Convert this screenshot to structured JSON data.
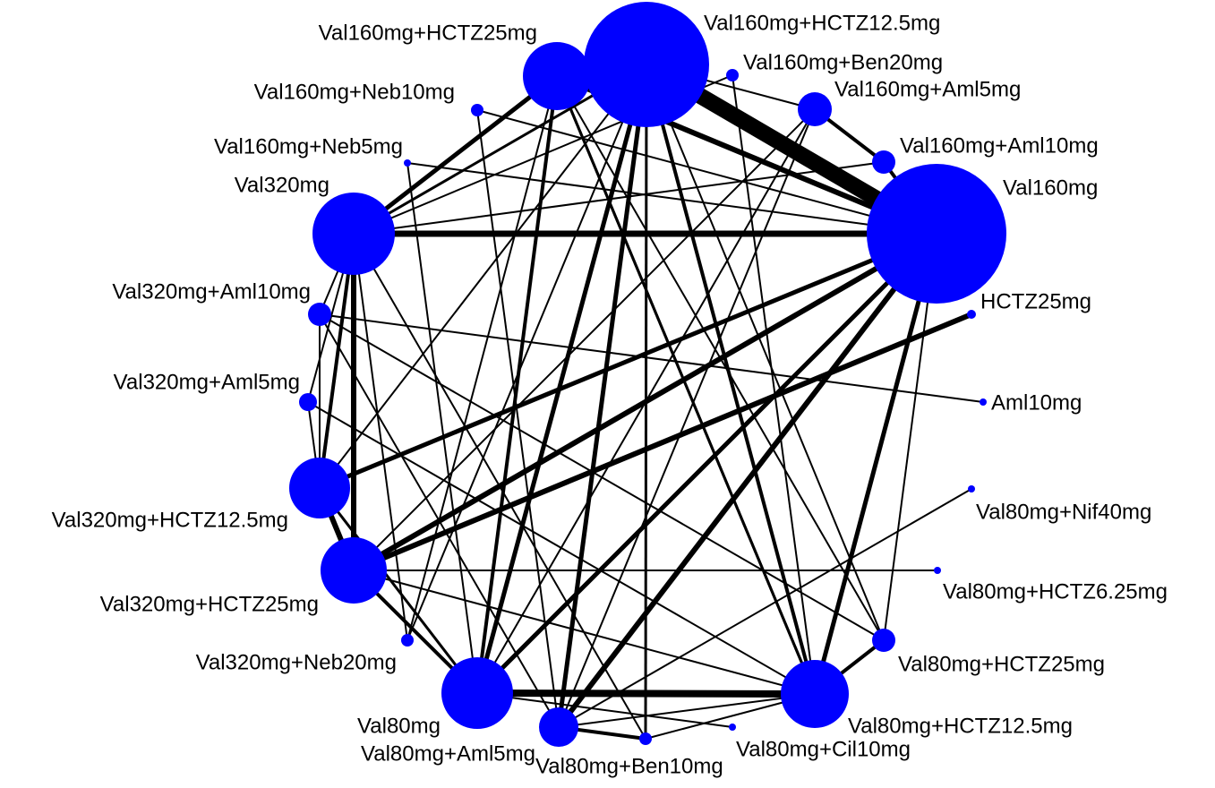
{
  "nodes": [
    {
      "label": "Val160mg+HCTZ12.5mg"
    },
    {
      "label": "Val160mg+HCTZ25mg"
    },
    {
      "label": "Val160mg+Ben20mg"
    },
    {
      "label": "Val160mg+Aml5mg"
    },
    {
      "label": "Val160mg+Aml10mg"
    },
    {
      "label": "Val160mg"
    },
    {
      "label": "HCTZ25mg"
    },
    {
      "label": "Aml10mg"
    },
    {
      "label": "Val80mg+Nif40mg"
    },
    {
      "label": "Val80mg+HCTZ6.25mg"
    },
    {
      "label": "Val80mg+HCTZ25mg"
    },
    {
      "label": "Val80mg+HCTZ12.5mg"
    },
    {
      "label": "Val80mg+Cil10mg"
    },
    {
      "label": "Val80mg+Ben10mg"
    },
    {
      "label": "Val80mg+Aml5mg"
    },
    {
      "label": "Val80mg"
    },
    {
      "label": "Val320mg+Neb20mg"
    },
    {
      "label": "Val320mg+HCTZ25mg"
    },
    {
      "label": "Val320mg+HCTZ12.5mg"
    },
    {
      "label": "Val320mg+Aml5mg"
    },
    {
      "label": "Val320mg+Aml10mg"
    },
    {
      "label": "Val320mg"
    },
    {
      "label": "Val160mg+Neb5mg"
    },
    {
      "label": "Val160mg+Neb10mg"
    }
  ]
}
